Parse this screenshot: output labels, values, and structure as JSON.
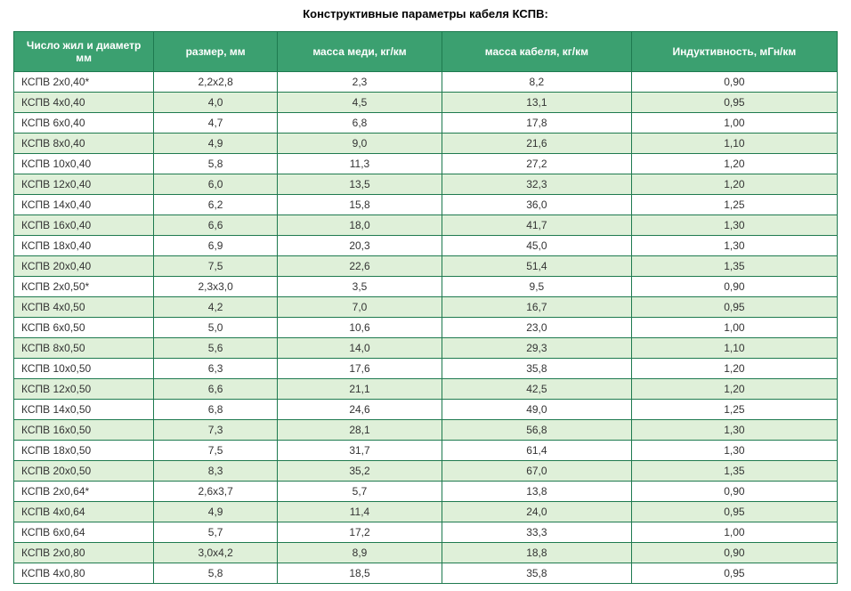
{
  "title": "Конструктивные параметры кабеля КСПВ:",
  "table": {
    "columns": [
      "Число жил и диаметр мм",
      "размер, мм",
      "масса меди, кг/км",
      "масса кабеля, кг/км",
      "Индуктивность, мГн/км"
    ],
    "rows": [
      [
        "КСПВ 2х0,40*",
        "2,2x2,8",
        "2,3",
        "8,2",
        "0,90"
      ],
      [
        "КСПВ 4х0,40",
        "4,0",
        "4,5",
        "13,1",
        "0,95"
      ],
      [
        "КСПВ 6х0,40",
        "4,7",
        "6,8",
        "17,8",
        "1,00"
      ],
      [
        "КСПВ 8х0,40",
        "4,9",
        "9,0",
        "21,6",
        "1,10"
      ],
      [
        "КСПВ 10х0,40",
        "5,8",
        "11,3",
        "27,2",
        "1,20"
      ],
      [
        "КСПВ 12х0,40",
        "6,0",
        "13,5",
        "32,3",
        "1,20"
      ],
      [
        "КСПВ 14х0,40",
        "6,2",
        "15,8",
        "36,0",
        "1,25"
      ],
      [
        "КСПВ 16х0,40",
        "6,6",
        "18,0",
        "41,7",
        "1,30"
      ],
      [
        "КСПВ 18х0,40",
        "6,9",
        "20,3",
        "45,0",
        "1,30"
      ],
      [
        "КСПВ 20х0,40",
        "7,5",
        "22,6",
        "51,4",
        "1,35"
      ],
      [
        "КСПВ 2х0,50*",
        "2,3x3,0",
        "3,5",
        "9,5",
        "0,90"
      ],
      [
        "КСПВ 4х0,50",
        "4,2",
        "7,0",
        "16,7",
        "0,95"
      ],
      [
        "КСПВ 6х0,50",
        "5,0",
        "10,6",
        "23,0",
        "1,00"
      ],
      [
        "КСПВ 8х0,50",
        "5,6",
        "14,0",
        "29,3",
        "1,10"
      ],
      [
        "КСПВ 10х0,50",
        "6,3",
        "17,6",
        "35,8",
        "1,20"
      ],
      [
        "КСПВ 12х0,50",
        "6,6",
        "21,1",
        "42,5",
        "1,20"
      ],
      [
        "КСПВ 14х0,50",
        "6,8",
        "24,6",
        "49,0",
        "1,25"
      ],
      [
        "КСПВ 16х0,50",
        "7,3",
        "28,1",
        "56,8",
        "1,30"
      ],
      [
        "КСПВ 18х0,50",
        "7,5",
        "31,7",
        "61,4",
        "1,30"
      ],
      [
        "КСПВ 20х0,50",
        "8,3",
        "35,2",
        "67,0",
        "1,35"
      ],
      [
        "КСПВ 2х0,64*",
        "2,6x3,7",
        "5,7",
        "13,8",
        "0,90"
      ],
      [
        "КСПВ 4х0,64",
        "4,9",
        "11,4",
        "24,0",
        "0,95"
      ],
      [
        "КСПВ 6х0,64",
        "5,7",
        "17,2",
        "33,3",
        "1,00"
      ],
      [
        "КСПВ 2х0,80",
        "3,0x4,2",
        "8,9",
        "18,8",
        "0,90"
      ],
      [
        "КСПВ 4х0,80",
        "5,8",
        "18,5",
        "35,8",
        "0,95"
      ]
    ],
    "header_bg": "#3ba070",
    "header_text_color": "#ffffff",
    "border_color": "#1e7a4f",
    "row_white_bg": "#ffffff",
    "row_green_bg": "#dff0d9",
    "cell_text_color": "#333333",
    "title_fontsize": 13,
    "header_fontsize": 12,
    "cell_fontsize": 12,
    "column_widths_pct": [
      17,
      15,
      20,
      23,
      25
    ]
  }
}
